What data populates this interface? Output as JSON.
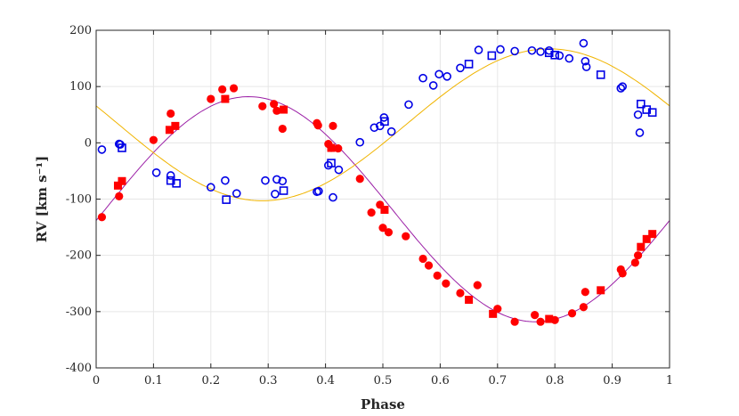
{
  "chart_data": {
    "type": "scatter",
    "xlabel": "Phase",
    "ylabel": "RV [km s⁻¹]",
    "xlim": [
      0,
      1
    ],
    "ylim": [
      -400,
      200
    ],
    "xticks": [
      "0",
      "0.1",
      "0.2",
      "0.3",
      "0.4",
      "0.5",
      "0.6",
      "0.7",
      "0.8",
      "0.9",
      "1"
    ],
    "yticks": [
      "-400",
      "-300",
      "-200",
      "-100",
      "0",
      "100",
      "200"
    ],
    "grid": true,
    "colors": {
      "primary": "#ff0000",
      "secondary": "#0000e6",
      "model_primary": "#9b1fa6",
      "model_secondary": "#f0b400"
    },
    "series": [
      {
        "marker": "filled-circle",
        "color": "#ff0000",
        "x": [
          0.01,
          0.04,
          0.1,
          0.13,
          0.2,
          0.22,
          0.24,
          0.29,
          0.31,
          0.315,
          0.325,
          0.385,
          0.387,
          0.405,
          0.41,
          0.413,
          0.422,
          0.46,
          0.48,
          0.495,
          0.5,
          0.51,
          0.54,
          0.57,
          0.58,
          0.595,
          0.61,
          0.635,
          0.665,
          0.7,
          0.73,
          0.765,
          0.775,
          0.8,
          0.83,
          0.85,
          0.853,
          0.915,
          0.918,
          0.94,
          0.945
        ],
        "y": [
          -132,
          -95,
          5,
          52,
          78,
          95,
          97,
          65,
          69,
          57,
          25,
          35,
          31,
          -2,
          -9,
          30,
          -10,
          -64,
          -124,
          -110,
          -151,
          -159,
          -166,
          -206,
          -218,
          -236,
          -250,
          -267,
          -253,
          -295,
          -318,
          -306,
          -318,
          -315,
          -303,
          -292,
          -265,
          -225,
          -232,
          -213,
          -200
        ]
      },
      {
        "marker": "filled-square",
        "color": "#ff0000",
        "x": [
          0.038,
          0.045,
          0.128,
          0.138,
          0.225,
          0.327,
          0.41,
          0.503,
          0.65,
          0.692,
          0.79,
          0.88,
          0.95,
          0.96,
          0.97
        ],
        "y": [
          -76,
          -68,
          23,
          30,
          78,
          59,
          -9,
          -119,
          -279,
          -304,
          -313,
          -262,
          -185,
          -171,
          -162
        ]
      },
      {
        "marker": "open-circle",
        "color": "#0000e6",
        "x": [
          0.01,
          0.04,
          0.042,
          0.105,
          0.13,
          0.2,
          0.225,
          0.245,
          0.295,
          0.312,
          0.315,
          0.325,
          0.385,
          0.388,
          0.405,
          0.413,
          0.423,
          0.46,
          0.485,
          0.495,
          0.502,
          0.515,
          0.545,
          0.57,
          0.588,
          0.598,
          0.612,
          0.635,
          0.667,
          0.705,
          0.73,
          0.76,
          0.775,
          0.79,
          0.808,
          0.825,
          0.85,
          0.853,
          0.855,
          0.915,
          0.918,
          0.945,
          0.948
        ],
        "y": [
          -12,
          -2,
          -3,
          -53,
          -58,
          -79,
          -67,
          -90,
          -67,
          -91,
          -65,
          -68,
          -87,
          -86,
          -40,
          -97,
          -48,
          1,
          27,
          30,
          45,
          20,
          68,
          115,
          102,
          122,
          118,
          133,
          165,
          166,
          163,
          164,
          162,
          164,
          155,
          150,
          177,
          145,
          135,
          97,
          100,
          50,
          18
        ]
      },
      {
        "marker": "open-square",
        "color": "#0000e6",
        "x": [
          0.045,
          0.13,
          0.14,
          0.227,
          0.327,
          0.41,
          0.503,
          0.65,
          0.69,
          0.79,
          0.8,
          0.88,
          0.95,
          0.96,
          0.97
        ],
        "y": [
          -9,
          -67,
          -72,
          -101,
          -85,
          -36,
          38,
          140,
          155,
          160,
          156,
          121,
          69,
          59,
          54
        ]
      }
    ]
  }
}
